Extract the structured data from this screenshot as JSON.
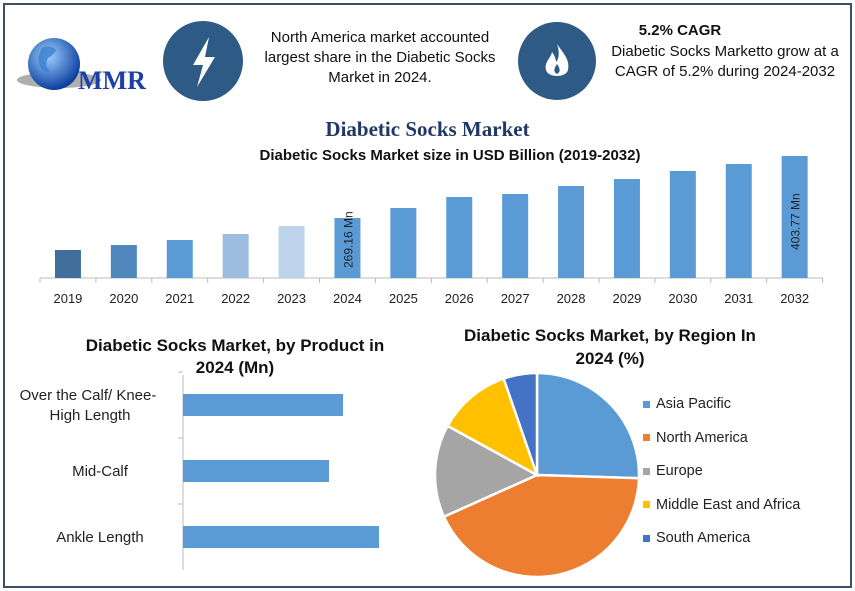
{
  "logo": {
    "text": "MMR"
  },
  "header": {
    "info1": {
      "icon": "lightning-icon",
      "text": "North America market accounted largest share in the Diabetic Socks Market in 2024."
    },
    "info2": {
      "icon": "flame-icon",
      "title": "5.2% CAGR",
      "text": "Diabetic Socks Marketto grow at a CAGR of 5.2% during 2024-2032"
    }
  },
  "main_title": "Diabetic Socks Market",
  "colors": {
    "frame": "#3b5266",
    "icon_circle": "#2d5b86",
    "bar": "#5b9bd5",
    "title": "#1f3864"
  },
  "chart_data": [
    {
      "type": "bar",
      "title": "Diabetic Socks Market size in USD Billion (2019-2032)",
      "categories": [
        "2019",
        "2020",
        "2021",
        "2022",
        "2023",
        "2024",
        "2025",
        "2026",
        "2027",
        "2028",
        "2029",
        "2030",
        "2031",
        "2032"
      ],
      "values": [
        199.7,
        210.5,
        221.4,
        234.4,
        251.8,
        269.16,
        290.9,
        314.8,
        321.3,
        338.6,
        353.8,
        371.2,
        386.4,
        403.77
      ],
      "bar_colors": [
        "#3f6f9a",
        "#4f86bb",
        "#5b9bd5",
        "#9dbde0",
        "#bdd3ec",
        "#5b9bd5",
        "#5b9bd5",
        "#5b9bd5",
        "#5b9bd5",
        "#5b9bd5",
        "#5b9bd5",
        "#5b9bd5",
        "#5b9bd5",
        "#5b9bd5"
      ],
      "data_labels": {
        "2024": "269.16 Mn",
        "2032": "403.77 Mn"
      },
      "grid": false
    },
    {
      "type": "bar",
      "orientation": "horizontal",
      "title": "Diabetic Socks Market, by Product in 2024 (Mn)",
      "categories": [
        "Over the Calf/ Knee-High Length",
        "Mid-Calf",
        "Ankle Length"
      ],
      "category_lines": [
        [
          "Over the Calf/ Knee-",
          "High Length"
        ],
        [
          "Mid-Calf"
        ],
        [
          "Ankle Length"
        ]
      ],
      "values": [
        160,
        146,
        196
      ],
      "color": "#5b9bd5",
      "grid": false
    },
    {
      "type": "pie",
      "title": "Diabetic Socks Market, by Region In 2024 (%)",
      "title_lines": [
        "Diabetic Socks Market, by Region In",
        "2024 (%)"
      ],
      "labels": [
        "Asia Pacific",
        "North America",
        "Europe",
        "Middle East and Africa",
        "South America"
      ],
      "values": [
        25.5,
        42.8,
        14.7,
        11.7,
        5.3
      ],
      "colors": [
        "#5b9bd5",
        "#ed7d31",
        "#a5a5a5",
        "#ffc000",
        "#4472c4"
      ],
      "legend": "right"
    }
  ]
}
